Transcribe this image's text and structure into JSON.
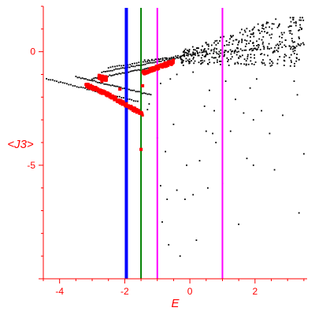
{
  "chart_data": {
    "type": "scatter",
    "title": "",
    "xlabel": "E",
    "ylabel": "<J3>",
    "xlim": [
      -4.5,
      3.6
    ],
    "ylim": [
      -10,
      2
    ],
    "grid": false,
    "legend": "none",
    "colors": {
      "axes": "#ff0000",
      "background_points": "#000000",
      "highlight_points": "#ff0000",
      "line_blue": "#0000ff",
      "line_green": "#008000",
      "line_magenta": "#ff00ff"
    },
    "x_ticks": [
      {
        "value": -4,
        "label": "-4"
      },
      {
        "value": -2,
        "label": "-2"
      },
      {
        "value": 0,
        "label": "0"
      },
      {
        "value": 2,
        "label": "2"
      }
    ],
    "y_ticks": [
      {
        "value": 0,
        "label": "0"
      },
      {
        "value": -5,
        "label": "-5"
      }
    ],
    "vertical_lines": [
      {
        "x": -1.95,
        "color": "#0000ff",
        "width": "thick"
      },
      {
        "x": -1.5,
        "color": "#008000",
        "width": "medium"
      },
      {
        "x": -1.0,
        "color": "#ff00ff",
        "width": "medium"
      },
      {
        "x": 1.0,
        "color": "#ff00ff",
        "width": "medium"
      }
    ],
    "series": [
      {
        "kind": "background",
        "color": "#000000",
        "branches": [
          {
            "x": [
              -4.4,
              -1.6
            ],
            "y": [
              -1.2,
              -2.2
            ]
          },
          {
            "x": [
              -3.5,
              -1.2
            ],
            "y": [
              -1.1,
              -1.9
            ]
          },
          {
            "x": [
              -3.0,
              -0.8
            ],
            "y": [
              -1.2,
              -0.6
            ]
          },
          {
            "x": [
              -2.7,
              -0.3
            ],
            "y": [
              -0.9,
              -0.25
            ]
          },
          {
            "x": [
              -2.5,
              0.5
            ],
            "y": [
              -0.7,
              0.0
            ]
          },
          {
            "x": [
              -1.5,
              3.5
            ],
            "y": [
              -0.4,
              0.3
            ]
          }
        ],
        "cloud": {
          "x": [
            -0.3,
            3.5
          ],
          "y": [
            -0.5,
            1.5
          ]
        },
        "scatter": [
          [
            -1.5,
            -4.3
          ],
          [
            -1.25,
            -2.3
          ],
          [
            -1.0,
            -3.8
          ],
          [
            -0.9,
            -5.9
          ],
          [
            -0.85,
            -7.5
          ],
          [
            -0.75,
            -4.4
          ],
          [
            -0.7,
            -6.5
          ],
          [
            -0.65,
            -8.5
          ],
          [
            -0.5,
            -3.2
          ],
          [
            -0.4,
            -6.1
          ],
          [
            -0.3,
            -9.0
          ],
          [
            -0.1,
            -5.0
          ],
          [
            -0.15,
            -6.5
          ],
          [
            0.1,
            -6.3
          ],
          [
            0.2,
            -8.3
          ],
          [
            0.3,
            -4.8
          ],
          [
            0.45,
            -2.4
          ],
          [
            0.5,
            -3.5
          ],
          [
            0.55,
            -6.0
          ],
          [
            0.7,
            -3.6
          ],
          [
            0.75,
            -2.6
          ],
          [
            0.8,
            -4.0
          ],
          [
            1.0,
            -5.8
          ],
          [
            1.1,
            -1.3
          ],
          [
            1.25,
            -3.5
          ],
          [
            1.4,
            -2.1
          ],
          [
            1.5,
            -7.6
          ],
          [
            1.65,
            -2.7
          ],
          [
            1.75,
            -4.7
          ],
          [
            1.85,
            -1.6
          ],
          [
            1.95,
            -3.0
          ],
          [
            1.95,
            -5.0
          ],
          [
            2.05,
            -1.2
          ],
          [
            2.2,
            -2.6
          ],
          [
            2.45,
            -3.6
          ],
          [
            2.6,
            -5.2
          ],
          [
            2.85,
            -2.8
          ],
          [
            3.2,
            -1.3
          ],
          [
            3.3,
            -1.9
          ],
          [
            3.35,
            -7.1
          ],
          [
            3.5,
            -4.5
          ],
          [
            -1.3,
            -2.55
          ],
          [
            -0.6,
            -1.2
          ],
          [
            -0.2,
            -0.6
          ],
          [
            0.1,
            -0.9
          ],
          [
            0.6,
            -1.7
          ],
          [
            1.2,
            -0.6
          ],
          [
            -0.9,
            -1.4
          ],
          [
            -0.4,
            -1.0
          ]
        ]
      },
      {
        "kind": "highlight",
        "color": "#ff0000",
        "branches": [
          {
            "x": [
              -3.2,
              -2.5
            ],
            "y": [
              -1.45,
              -1.9
            ]
          },
          {
            "x": [
              -2.5,
              -1.45
            ],
            "y": [
              -1.9,
              -2.75
            ]
          },
          {
            "x": [
              -2.8,
              -2.55
            ],
            "y": [
              -1.1,
              -1.2
            ]
          },
          {
            "x": [
              -1.45,
              -0.75
            ],
            "y": [
              -0.95,
              -0.55
            ]
          },
          {
            "x": [
              -0.8,
              -0.5
            ],
            "y": [
              -0.6,
              -0.45
            ]
          }
        ],
        "points": [
          [
            -1.5,
            -4.3
          ],
          [
            -1.45,
            -1.5
          ],
          [
            -2.7,
            -1.3
          ],
          [
            -2.15,
            -1.65
          ]
        ]
      }
    ]
  }
}
